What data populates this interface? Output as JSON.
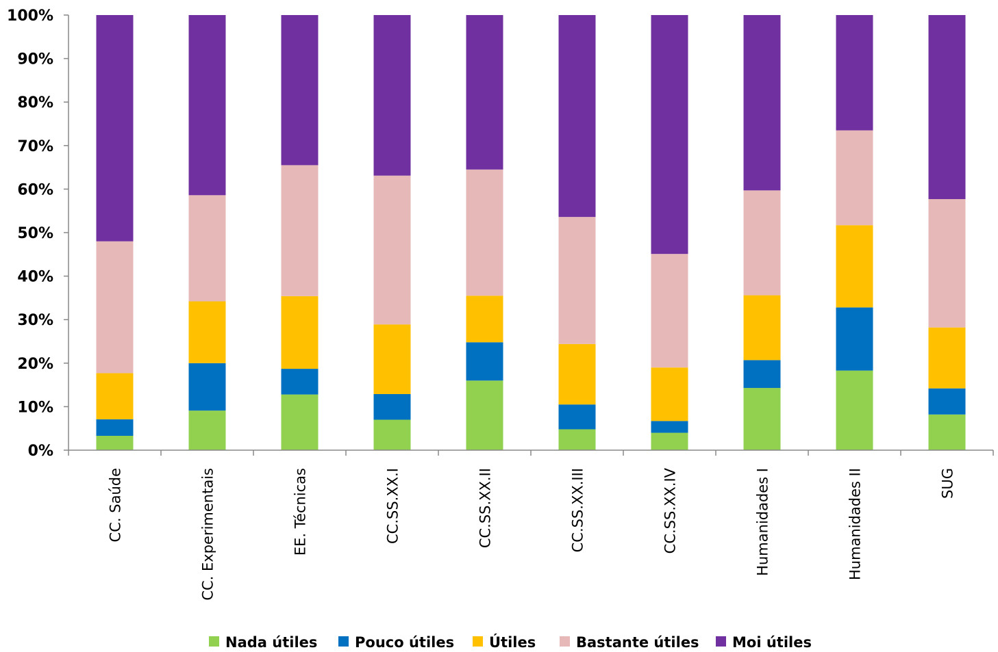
{
  "chart_data": {
    "type": "bar",
    "stacked": true,
    "normalized": true,
    "categories": [
      "CC. Saúde",
      "CC. Experimentais",
      "EE. Técnicas",
      "CC.SS.XX.I",
      "CC.SS.XX.II",
      "CC.SS.XX.III",
      "CC.SS.XX.IV",
      "Humanidades I",
      "Humanidades II",
      "SUG"
    ],
    "series": [
      {
        "name": "Nada útiles",
        "color": "#92d050",
        "values": [
          3.3,
          9.1,
          12.8,
          7.0,
          16.0,
          4.8,
          4.0,
          14.3,
          18.3,
          8.2
        ]
      },
      {
        "name": "Pouco útiles",
        "color": "#0070c0",
        "values": [
          3.8,
          10.9,
          5.9,
          5.9,
          8.8,
          5.7,
          2.7,
          6.4,
          14.5,
          6.0
        ]
      },
      {
        "name": "Útiles",
        "color": "#ffc000",
        "values": [
          10.6,
          14.2,
          16.7,
          16.0,
          10.7,
          13.9,
          12.3,
          14.9,
          18.9,
          14.0
        ]
      },
      {
        "name": "Bastante útiles",
        "color": "#e6b9b8",
        "values": [
          30.3,
          24.4,
          30.1,
          34.2,
          29.0,
          29.2,
          26.1,
          24.1,
          21.8,
          29.5
        ]
      },
      {
        "name": "Moi útiles",
        "color": "#7030a0",
        "values": [
          52.0,
          41.4,
          34.5,
          36.9,
          35.5,
          46.4,
          54.9,
          40.3,
          26.5,
          42.3
        ]
      }
    ],
    "yticks": [
      "0%",
      "10%",
      "20%",
      "30%",
      "40%",
      "50%",
      "60%",
      "70%",
      "80%",
      "90%",
      "100%"
    ],
    "ylim": [
      0,
      100
    ],
    "legend_position": "bottom",
    "title": "",
    "xlabel": "",
    "ylabel": ""
  }
}
